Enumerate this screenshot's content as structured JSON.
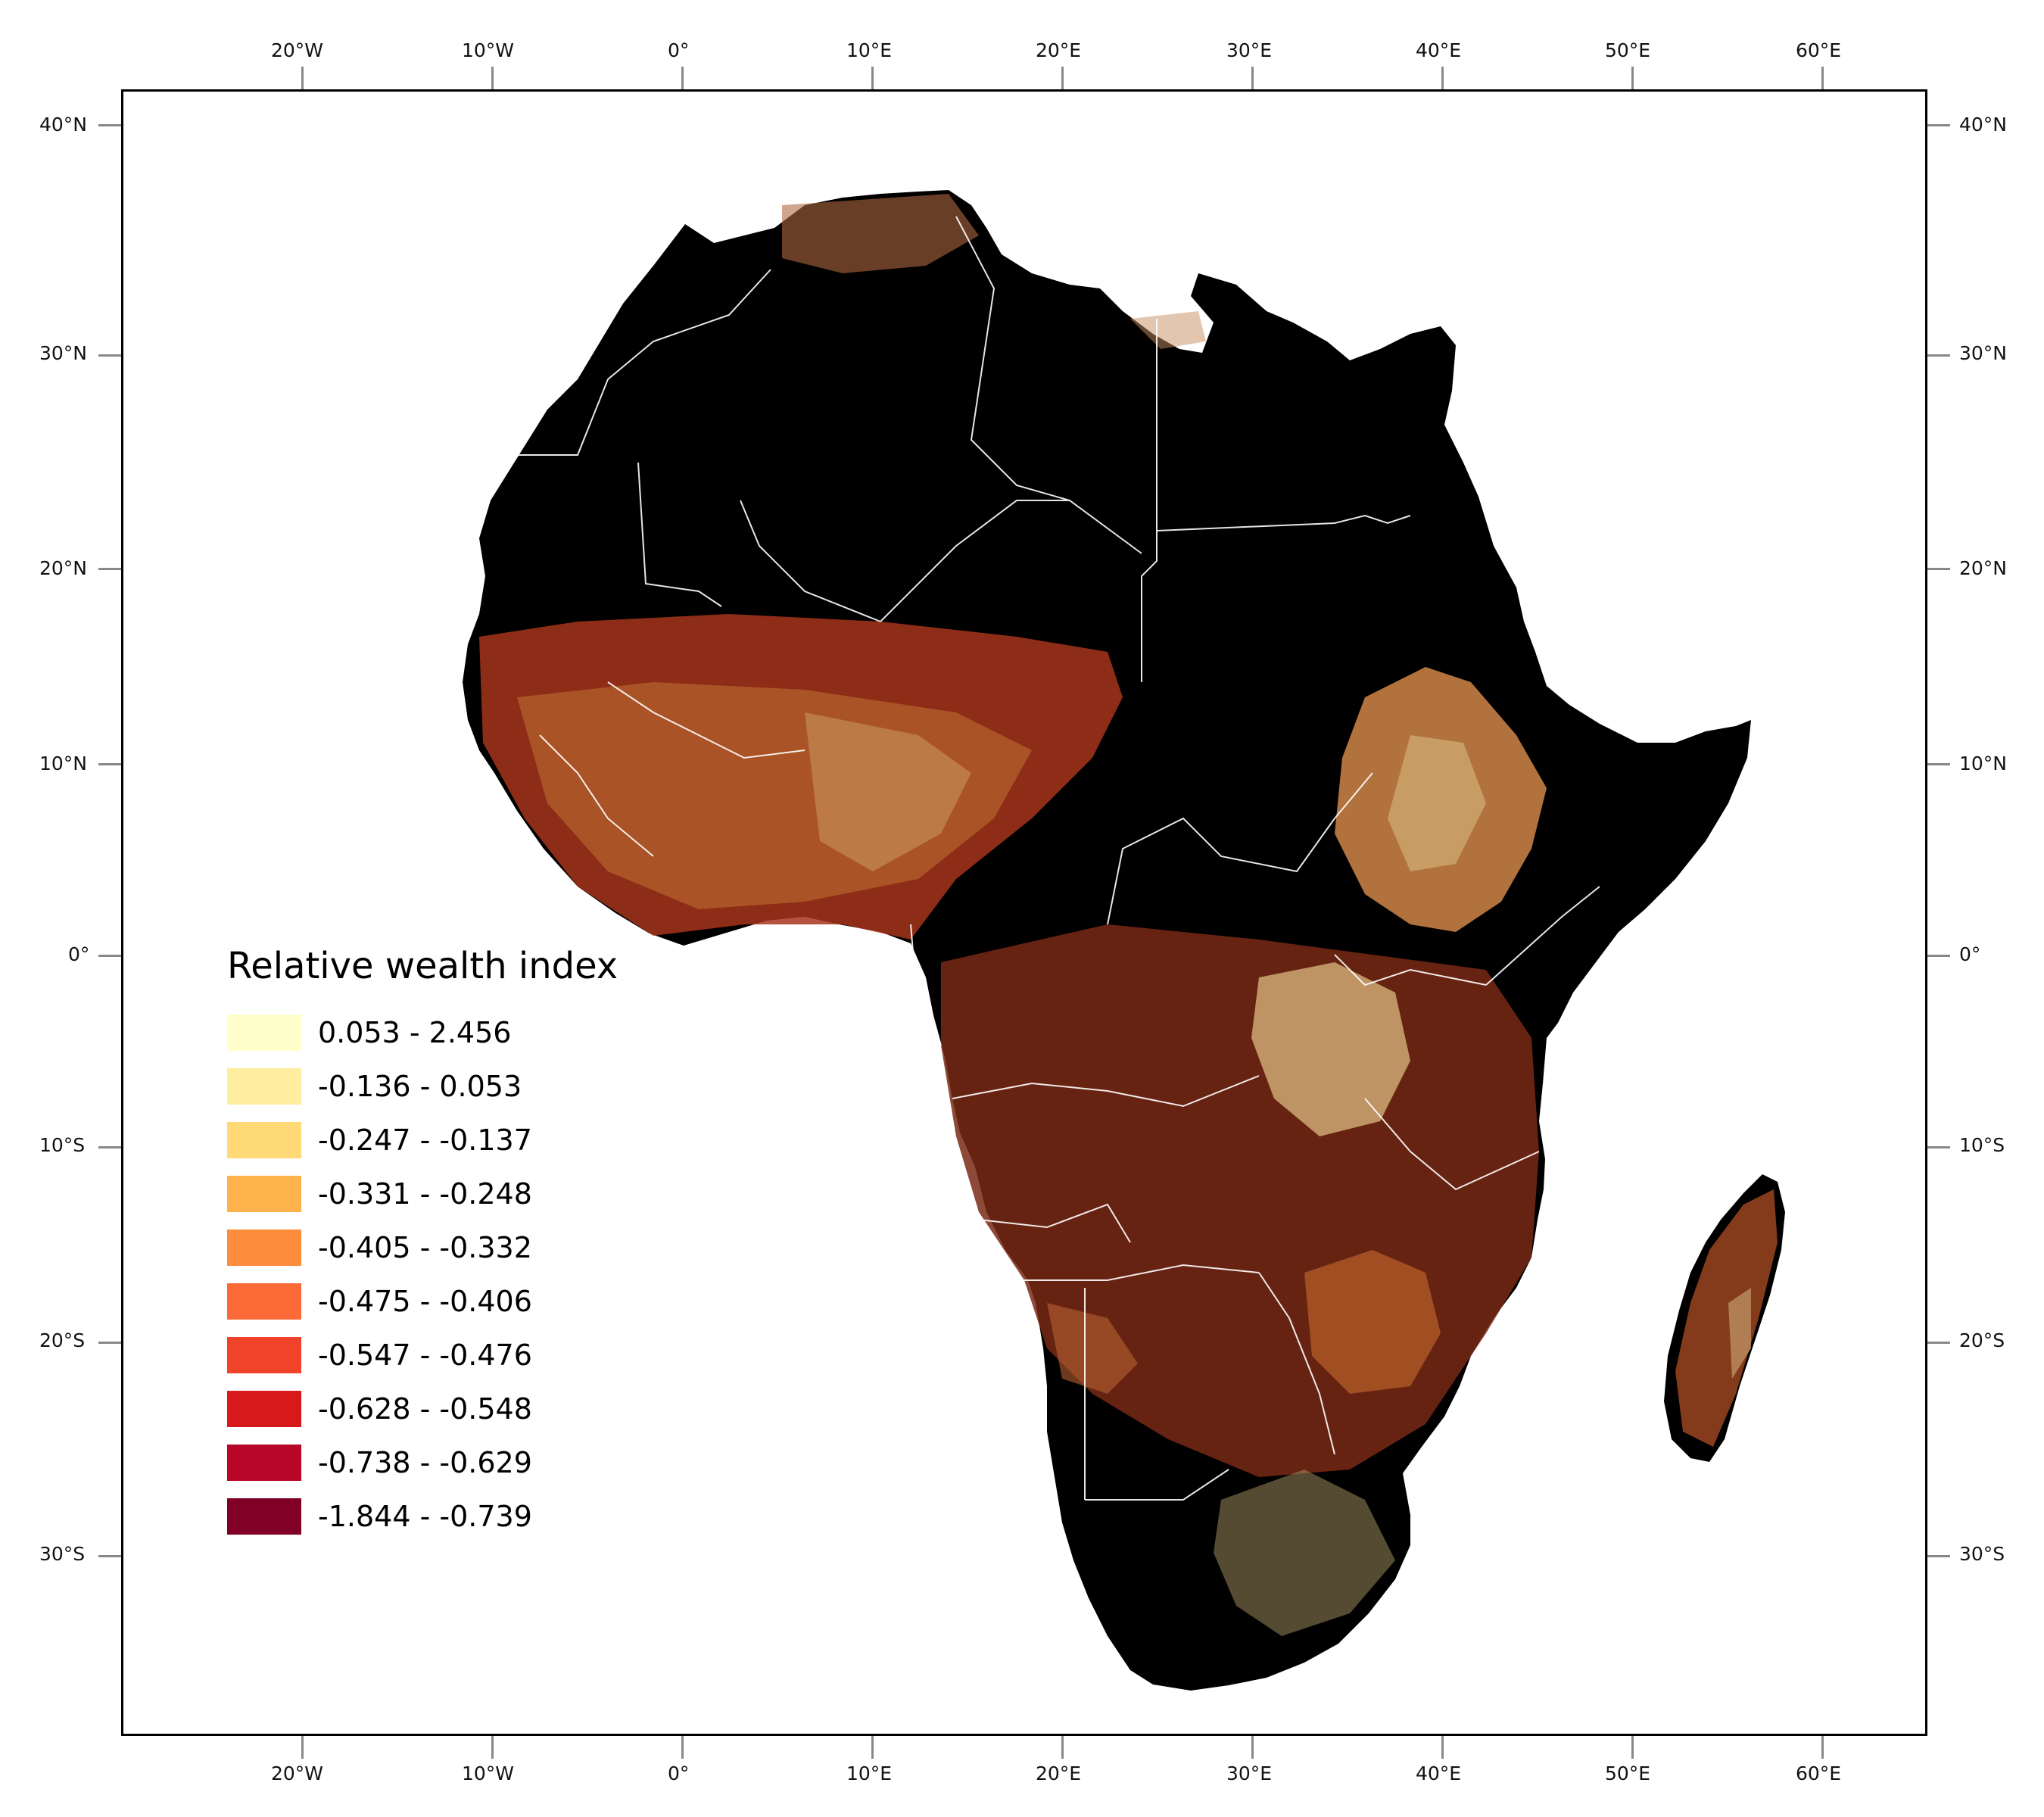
{
  "axes": {
    "longitude_labels": [
      "20°W",
      "10°W",
      "0°",
      "10°E",
      "20°E",
      "30°E",
      "40°E",
      "50°E",
      "60°E"
    ],
    "latitude_labels": [
      "40°N",
      "30°N",
      "20°N",
      "10°N",
      "0°",
      "10°S",
      "20°S",
      "30°S"
    ]
  },
  "legend": {
    "title": "Relative wealth index",
    "items": [
      {
        "label": "0.053 - 2.456",
        "color": "#ffffcc"
      },
      {
        "label": "-0.136 - 0.053",
        "color": "#ffeda0"
      },
      {
        "label": "-0.247 - -0.137",
        "color": "#fed976"
      },
      {
        "label": "-0.331 - -0.248",
        "color": "#feb24c"
      },
      {
        "label": "-0.405 - -0.332",
        "color": "#fd8d3c"
      },
      {
        "label": "-0.475 - -0.406",
        "color": "#fc6a37"
      },
      {
        "label": "-0.547 - -0.476",
        "color": "#f0432a"
      },
      {
        "label": "-0.628 - -0.548",
        "color": "#d7191c"
      },
      {
        "label": "-0.738 - -0.629",
        "color": "#b70628"
      },
      {
        "label": "-1.844 - -0.739",
        "color": "#800026"
      }
    ]
  },
  "colors": {
    "land_no_data": "#000000",
    "borders": "#ffffff",
    "frame": "#000000"
  }
}
